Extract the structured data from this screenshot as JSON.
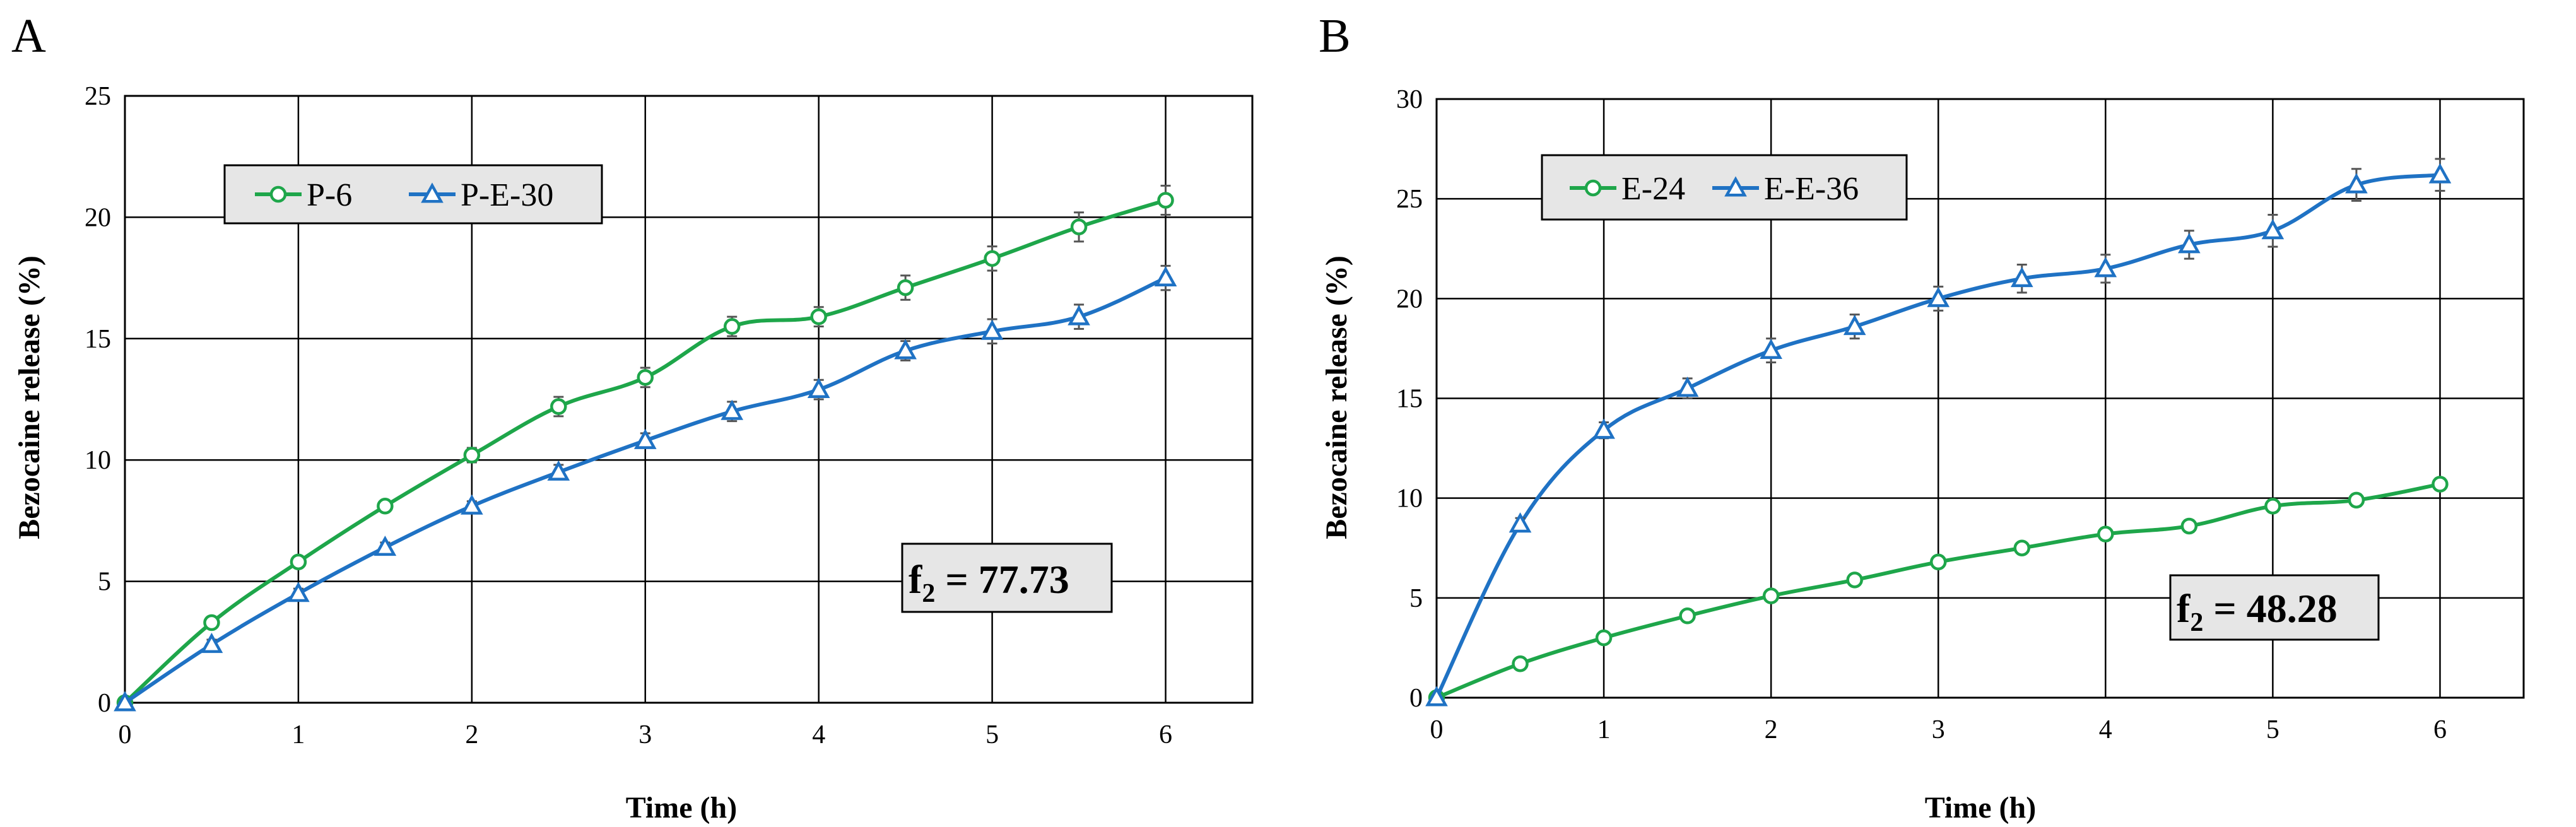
{
  "chart_data": [
    {
      "type": "line",
      "panel_label": "A",
      "xlabel": "Time (h)",
      "ylabel": "Bezocaine release (%)",
      "xlim": [
        0,
        6.5
      ],
      "ylim": [
        0,
        25
      ],
      "xticks": [
        "0",
        "1",
        "2",
        "3",
        "4",
        "5",
        "6"
      ],
      "yticks": [
        "0",
        "5",
        "10",
        "15",
        "20",
        "25"
      ],
      "grid": true,
      "legend_position": "top-left",
      "annotation": {
        "prefix": "f",
        "subscript": "2",
        "text": " = 77.73"
      },
      "series": [
        {
          "name": "P-6",
          "color": "#1ea64a",
          "marker": "circle",
          "x": [
            0,
            0.5,
            1,
            1.5,
            2,
            2.5,
            3,
            3.5,
            4,
            4.5,
            5,
            5.5,
            6
          ],
          "y": [
            0,
            3.3,
            5.8,
            8.1,
            10.2,
            12.2,
            13.4,
            15.5,
            15.9,
            17.1,
            18.3,
            19.6,
            20.7
          ],
          "err": [
            0.1,
            0.2,
            0.2,
            0.2,
            0.3,
            0.4,
            0.4,
            0.4,
            0.4,
            0.5,
            0.5,
            0.6,
            0.6
          ]
        },
        {
          "name": "P-E-30",
          "color": "#1f72c4",
          "marker": "triangle",
          "x": [
            0,
            0.5,
            1,
            1.5,
            2,
            2.5,
            3,
            3.5,
            4,
            4.5,
            5,
            5.5,
            6
          ],
          "y": [
            0,
            2.4,
            4.5,
            6.4,
            8.1,
            9.5,
            10.8,
            12.0,
            12.9,
            14.5,
            15.3,
            15.9,
            17.5
          ],
          "err": [
            0.1,
            0.2,
            0.2,
            0.2,
            0.2,
            0.3,
            0.3,
            0.4,
            0.4,
            0.4,
            0.5,
            0.5,
            0.5
          ]
        }
      ]
    },
    {
      "type": "line",
      "panel_label": "B",
      "xlabel": "Time (h)",
      "ylabel": "Bezocaine release (%)",
      "xlim": [
        0,
        6.5
      ],
      "ylim": [
        0,
        30
      ],
      "xticks": [
        "0",
        "1",
        "2",
        "3",
        "4",
        "5",
        "6"
      ],
      "yticks": [
        "0",
        "5",
        "10",
        "15",
        "20",
        "25",
        "30"
      ],
      "grid": true,
      "legend_position": "top-left",
      "annotation": {
        "prefix": "f",
        "subscript": "2",
        "text": " = 48.28"
      },
      "series": [
        {
          "name": "E-24",
          "color": "#1ea64a",
          "marker": "circle",
          "x": [
            0,
            0.5,
            1,
            1.5,
            2,
            2.5,
            3,
            3.5,
            4,
            4.5,
            5,
            5.5,
            6
          ],
          "y": [
            0,
            1.7,
            3.0,
            4.1,
            5.1,
            5.9,
            6.8,
            7.5,
            8.2,
            8.6,
            9.6,
            9.9,
            10.7
          ],
          "err": [
            0.1,
            0.1,
            0.2,
            0.2,
            0.2,
            0.2,
            0.2,
            0.2,
            0.3,
            0.3,
            0.3,
            0.3,
            0.3
          ]
        },
        {
          "name": "E-E-36",
          "color": "#1f72c4",
          "marker": "triangle",
          "x": [
            0,
            0.5,
            1,
            1.5,
            2,
            2.5,
            3,
            3.5,
            4,
            4.5,
            5,
            5.5,
            6
          ],
          "y": [
            0,
            8.7,
            13.4,
            15.5,
            17.4,
            18.6,
            20.0,
            21.0,
            21.5,
            22.7,
            23.4,
            25.7,
            26.2
          ],
          "err": [
            0.1,
            0.3,
            0.4,
            0.5,
            0.6,
            0.6,
            0.6,
            0.7,
            0.7,
            0.7,
            0.8,
            0.8,
            0.8
          ]
        }
      ]
    }
  ]
}
